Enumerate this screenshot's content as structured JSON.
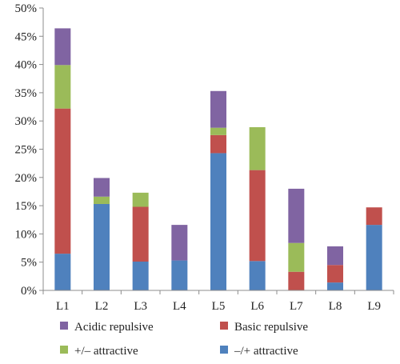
{
  "chart_data": {
    "type": "bar",
    "stacked": true,
    "title": "",
    "xlabel": "",
    "ylabel": "",
    "categories": [
      "L1",
      "L2",
      "L3",
      "L4",
      "L5",
      "L6",
      "L7",
      "L8",
      "L9"
    ],
    "ylim": [
      0,
      50
    ],
    "yticks": [
      "0%",
      "5%",
      "10%",
      "15%",
      "20%",
      "25%",
      "30%",
      "35%",
      "40%",
      "45%",
      "50%"
    ],
    "grid": false,
    "legend_position": "bottom",
    "series": [
      {
        "name": "–/+ attractive",
        "color": "#4f81bd",
        "values": [
          6.5,
          15.3,
          5.1,
          5.3,
          24.3,
          5.2,
          0,
          1.4,
          11.6
        ]
      },
      {
        "name": "Basic repulsive",
        "color": "#c0504d",
        "values": [
          25.7,
          0,
          9.7,
          0,
          3.2,
          16.1,
          3.3,
          3.1,
          3.1
        ]
      },
      {
        "name": "+/– attractive",
        "color": "#9bbb59",
        "values": [
          7.7,
          1.3,
          2.5,
          0,
          1.3,
          7.6,
          5.1,
          0,
          0
        ]
      },
      {
        "name": "Acidic repulsive",
        "color": "#8064a2",
        "values": [
          6.5,
          3.3,
          0,
          6.3,
          6.5,
          0,
          9.6,
          3.3,
          0
        ]
      }
    ],
    "legend_order": [
      "Acidic repulsive",
      "Basic repulsive",
      "+/– attractive",
      "–/+ attractive"
    ]
  }
}
